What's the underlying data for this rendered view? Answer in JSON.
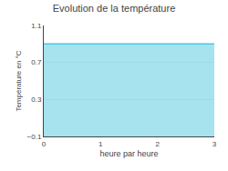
{
  "chart_data": {
    "type": "area",
    "title": "Evolution de la température",
    "xlabel": "heure par heure",
    "ylabel": "Température en °C",
    "x": [
      0,
      3
    ],
    "values": [
      0.9,
      0.9
    ],
    "color": "#4ec8e0",
    "xlim": [
      0,
      3
    ],
    "ylim": [
      -0.1,
      1.1
    ],
    "xticks": [
      0,
      1,
      2,
      3
    ],
    "yticks": [
      -0.1,
      0.3,
      0.7,
      1.1
    ],
    "grid": "y"
  }
}
